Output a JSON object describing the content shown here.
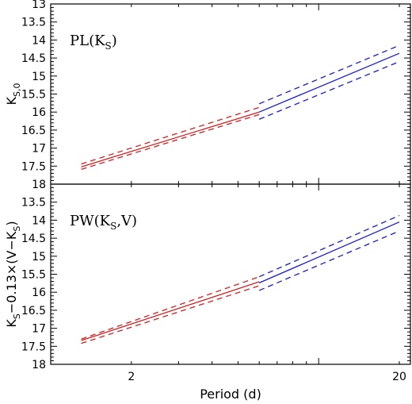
{
  "chart_data": [
    {
      "type": "line",
      "panel_label": "PL(K_S)",
      "ylabel": "K_{S,0}",
      "xlabel": "",
      "xscale": "log",
      "xlim": [
        1.0,
        22.0
      ],
      "ylim": [
        18,
        13
      ],
      "y_ticks": [
        "13",
        "13.5",
        "14",
        "14.5",
        "15",
        "15.5",
        "16",
        "16.5",
        "17",
        "17.5",
        "18"
      ],
      "x_ticks": [
        "2",
        "20"
      ],
      "series": [
        {
          "color": "#d42020",
          "style": "solid",
          "x": [
            1.3,
            6.0
          ],
          "y": [
            17.52,
            16.0
          ]
        },
        {
          "color": "#d42020",
          "style": "dashed",
          "x": [
            1.3,
            6.0
          ],
          "y": [
            17.44,
            15.87
          ]
        },
        {
          "color": "#d42020",
          "style": "dashed",
          "x": [
            1.3,
            6.0
          ],
          "y": [
            17.59,
            16.07
          ]
        },
        {
          "color": "#1a1ad0",
          "style": "solid",
          "x": [
            6.0,
            20.0
          ],
          "y": [
            16.0,
            14.37
          ]
        },
        {
          "color": "#1a1ad0",
          "style": "dashed",
          "x": [
            6.0,
            20.0
          ],
          "y": [
            15.77,
            14.15
          ]
        },
        {
          "color": "#1a1ad0",
          "style": "dashed",
          "x": [
            6.0,
            20.0
          ],
          "y": [
            16.2,
            14.6
          ]
        }
      ]
    },
    {
      "type": "line",
      "panel_label": "PW(K_S,V)",
      "ylabel": "K_S−0.13×(V−K_S)",
      "xlabel": "Period (d)",
      "xscale": "log",
      "xlim": [
        1.0,
        22.0
      ],
      "ylim": [
        18,
        13
      ],
      "y_ticks": [
        "13.5",
        "14",
        "14.5",
        "15",
        "15.5",
        "16",
        "16.5",
        "17",
        "17.5",
        "18"
      ],
      "x_ticks": [
        "2",
        "20"
      ],
      "series": [
        {
          "color": "#d42020",
          "style": "solid",
          "x": [
            1.3,
            6.0
          ],
          "y": [
            17.34,
            15.71
          ]
        },
        {
          "color": "#d42020",
          "style": "dashed",
          "x": [
            1.3,
            6.0
          ],
          "y": [
            17.3,
            15.57
          ]
        },
        {
          "color": "#d42020",
          "style": "dashed",
          "x": [
            1.3,
            6.0
          ],
          "y": [
            17.42,
            15.82
          ]
        },
        {
          "color": "#1a1ad0",
          "style": "solid",
          "x": [
            6.0,
            20.0
          ],
          "y": [
            15.74,
            14.05
          ]
        },
        {
          "color": "#1a1ad0",
          "style": "dashed",
          "x": [
            6.0,
            20.0
          ],
          "y": [
            15.57,
            13.87
          ]
        },
        {
          "color": "#1a1ad0",
          "style": "dashed",
          "x": [
            6.0,
            20.0
          ],
          "y": [
            15.95,
            14.3
          ]
        }
      ]
    }
  ]
}
